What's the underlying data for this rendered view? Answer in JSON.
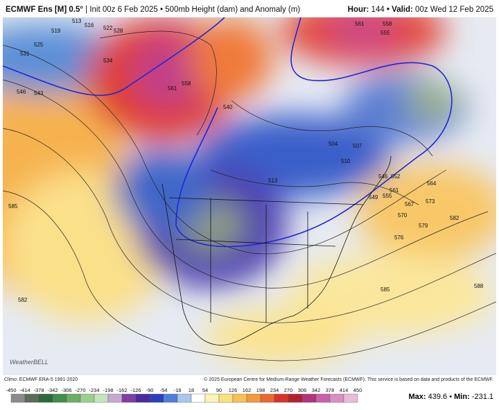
{
  "header": {
    "model": "ECMWF Ens [M] 0.5°",
    "init": "| Init 00z 6 Feb 2025 • 500mb Height (dam) and Anomaly (m)",
    "hour_label": "Hour:",
    "hour": "144",
    "valid_label": "• Valid:",
    "valid": "00z Wed 12 Feb 2025"
  },
  "map": {
    "logo": "WeatherBELL",
    "contour_labels": [
      "513",
      "516",
      "519",
      "522",
      "525",
      "528",
      "531",
      "534",
      "543",
      "546",
      "561",
      "558",
      "540",
      "561",
      "558",
      "555",
      "504",
      "507",
      "510",
      "513",
      "546",
      "552",
      "549",
      "555",
      "561",
      "564",
      "567",
      "570",
      "573",
      "576",
      "579",
      "582",
      "585",
      "582",
      "585",
      "588"
    ]
  },
  "footer": {
    "climo": "Climo: ECMWF ERA-5 1991-2020",
    "copyright": "© 2025 European Centre for Medium-Range Weather Forecasts (ECMWF). This service is based on data and products of the ECMWF."
  },
  "colorbar": {
    "labels": [
      "-450",
      "-414",
      "-378",
      "-342",
      "-306",
      "-270",
      "-234",
      "-198",
      "-162",
      "-126",
      "-90",
      "-54",
      "-18",
      "18",
      "54",
      "90",
      "126",
      "162",
      "198",
      "234",
      "270",
      "306",
      "342",
      "378",
      "414",
      "450"
    ]
  },
  "stats": {
    "max_label": "Max:",
    "max": "439.6",
    "sep": "•",
    "min_label": "Min:",
    "min": "-231.1"
  }
}
